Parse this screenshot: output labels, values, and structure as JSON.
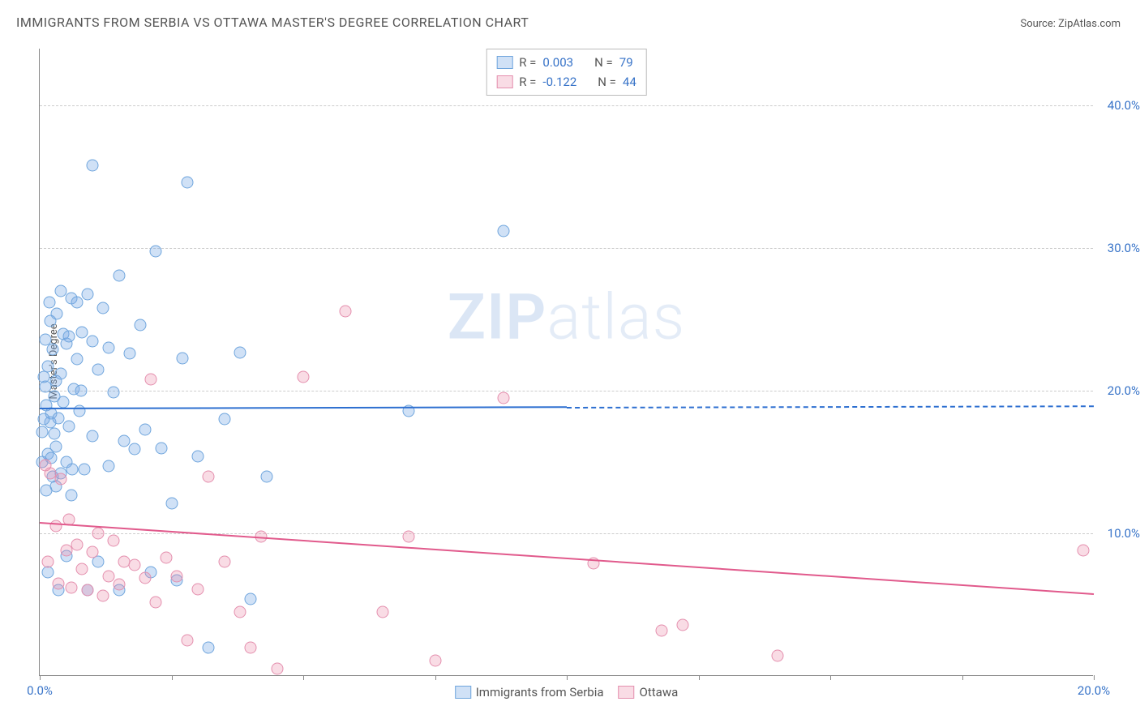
{
  "title": "IMMIGRANTS FROM SERBIA VS OTTAWA MASTER'S DEGREE CORRELATION CHART",
  "source_label": "Source: ZipAtlas.com",
  "y_axis_label": "Master's Degree",
  "watermark_bold": "ZIP",
  "watermark_light": "atlas",
  "chart": {
    "xlim": [
      0,
      20
    ],
    "ylim": [
      0,
      44
    ],
    "y_ticks": [
      10,
      20,
      30,
      40
    ],
    "y_tick_labels": [
      "10.0%",
      "20.0%",
      "30.0%",
      "40.0%"
    ],
    "x_ticks": [
      0,
      20
    ],
    "x_tick_labels": [
      "0.0%",
      "20.0%"
    ],
    "x_minor_ticks": [
      0,
      2.5,
      5,
      7.5,
      10,
      12.5,
      15,
      17.5,
      20
    ],
    "background": "#ffffff",
    "grid_color": "#cccccc"
  },
  "series": [
    {
      "name": "Immigrants from Serbia",
      "fill": "rgba(120,170,230,0.35)",
      "stroke": "#6fa5dd",
      "line_color": "#2d6fd0",
      "r_label": "R = ",
      "r_value": "0.003",
      "n_label": "N = ",
      "n_value": "79",
      "trend": {
        "y_start": 18.8,
        "y_end": 19.0,
        "solid_until_x": 10
      },
      "points": [
        [
          0.05,
          17.1
        ],
        [
          0.1,
          20.3
        ],
        [
          0.1,
          23.6
        ],
        [
          0.12,
          19.0
        ],
        [
          0.15,
          21.7
        ],
        [
          0.15,
          15.6
        ],
        [
          0.18,
          26.2
        ],
        [
          0.2,
          17.8
        ],
        [
          0.2,
          24.9
        ],
        [
          0.22,
          18.4
        ],
        [
          0.25,
          22.9
        ],
        [
          0.25,
          14.0
        ],
        [
          0.28,
          19.6
        ],
        [
          0.3,
          20.7
        ],
        [
          0.3,
          16.1
        ],
        [
          0.32,
          25.4
        ],
        [
          0.35,
          18.1
        ],
        [
          0.4,
          21.2
        ],
        [
          0.4,
          27.0
        ],
        [
          0.45,
          19.2
        ],
        [
          0.5,
          23.3
        ],
        [
          0.5,
          15.0
        ],
        [
          0.55,
          17.5
        ],
        [
          0.6,
          26.5
        ],
        [
          0.6,
          12.7
        ],
        [
          0.65,
          20.1
        ],
        [
          0.7,
          22.2
        ],
        [
          0.75,
          18.6
        ],
        [
          0.8,
          24.1
        ],
        [
          0.85,
          14.5
        ],
        [
          0.9,
          26.8
        ],
        [
          1.0,
          35.8
        ],
        [
          1.0,
          16.8
        ],
        [
          1.1,
          21.5
        ],
        [
          1.2,
          25.8
        ],
        [
          1.3,
          14.7
        ],
        [
          1.3,
          23.0
        ],
        [
          1.4,
          19.9
        ],
        [
          1.5,
          28.1
        ],
        [
          1.6,
          16.5
        ],
        [
          1.7,
          22.6
        ],
        [
          1.8,
          15.9
        ],
        [
          1.9,
          24.6
        ],
        [
          2.0,
          17.3
        ],
        [
          2.1,
          7.3
        ],
        [
          2.2,
          29.8
        ],
        [
          2.3,
          16.0
        ],
        [
          2.5,
          12.1
        ],
        [
          2.6,
          6.7
        ],
        [
          2.7,
          22.3
        ],
        [
          2.8,
          34.6
        ],
        [
          3.0,
          15.4
        ],
        [
          3.2,
          2.0
        ],
        [
          3.5,
          18.0
        ],
        [
          3.8,
          22.7
        ],
        [
          4.0,
          5.4
        ],
        [
          4.3,
          14.0
        ],
        [
          0.15,
          7.3
        ],
        [
          0.3,
          13.3
        ],
        [
          0.9,
          6.0
        ],
        [
          1.1,
          8.0
        ],
        [
          1.5,
          6.0
        ],
        [
          0.35,
          6.0
        ],
        [
          0.05,
          15.0
        ],
        [
          0.4,
          14.2
        ],
        [
          0.5,
          8.4
        ],
        [
          0.08,
          18.0
        ],
        [
          0.08,
          21.0
        ],
        [
          0.28,
          17.0
        ],
        [
          0.45,
          24.0
        ],
        [
          0.55,
          23.8
        ],
        [
          0.22,
          15.3
        ],
        [
          0.62,
          14.5
        ],
        [
          0.7,
          26.2
        ],
        [
          0.78,
          20.0
        ],
        [
          7.0,
          18.6
        ],
        [
          8.8,
          31.2
        ],
        [
          0.12,
          13.0
        ],
        [
          1.0,
          23.5
        ]
      ]
    },
    {
      "name": "Ottawa",
      "fill": "rgba(235,140,170,0.30)",
      "stroke": "#e48fae",
      "line_color": "#e15a8c",
      "r_label": "R = ",
      "r_value": "-0.122",
      "n_label": "N = ",
      "n_value": "44",
      "trend": {
        "y_start": 10.8,
        "y_end": 5.8,
        "solid_until_x": 20
      },
      "points": [
        [
          0.1,
          14.8
        ],
        [
          0.15,
          8.0
        ],
        [
          0.2,
          14.2
        ],
        [
          0.3,
          10.5
        ],
        [
          0.35,
          6.5
        ],
        [
          0.4,
          13.8
        ],
        [
          0.5,
          8.8
        ],
        [
          0.55,
          11.0
        ],
        [
          0.6,
          6.2
        ],
        [
          0.7,
          9.2
        ],
        [
          0.8,
          7.5
        ],
        [
          0.9,
          6.0
        ],
        [
          1.0,
          8.7
        ],
        [
          1.1,
          10.0
        ],
        [
          1.2,
          5.6
        ],
        [
          1.3,
          7.0
        ],
        [
          1.4,
          9.5
        ],
        [
          1.5,
          6.4
        ],
        [
          1.6,
          8.0
        ],
        [
          1.8,
          7.8
        ],
        [
          2.0,
          6.9
        ],
        [
          2.2,
          5.2
        ],
        [
          2.4,
          8.3
        ],
        [
          2.6,
          7.0
        ],
        [
          2.8,
          2.5
        ],
        [
          3.0,
          6.1
        ],
        [
          3.2,
          14.0
        ],
        [
          3.5,
          8.0
        ],
        [
          3.8,
          4.5
        ],
        [
          4.0,
          2.0
        ],
        [
          4.2,
          9.8
        ],
        [
          4.5,
          0.5
        ],
        [
          5.0,
          21.0
        ],
        [
          5.8,
          25.6
        ],
        [
          6.5,
          4.5
        ],
        [
          7.0,
          9.8
        ],
        [
          7.5,
          1.1
        ],
        [
          8.8,
          19.5
        ],
        [
          10.5,
          7.9
        ],
        [
          11.8,
          3.2
        ],
        [
          12.2,
          3.6
        ],
        [
          14.0,
          1.4
        ],
        [
          19.8,
          8.8
        ],
        [
          2.1,
          20.8
        ]
      ]
    }
  ]
}
